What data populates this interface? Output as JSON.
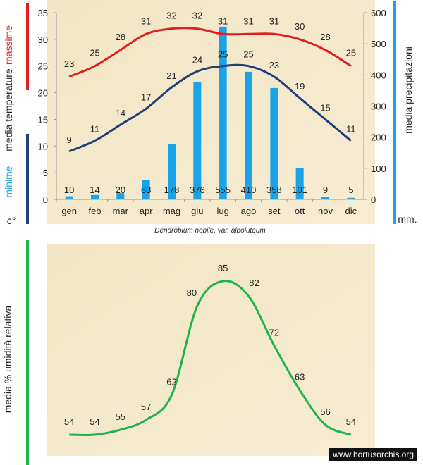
{
  "chart_data": [
    {
      "type": "bar+line",
      "categories": [
        "gen",
        "feb",
        "mar",
        "apr",
        "mag",
        "giu",
        "lug",
        "ago",
        "set",
        "ott",
        "nov",
        "dic"
      ],
      "series": [
        {
          "name": "massime",
          "values": [
            23,
            25,
            28,
            31,
            32,
            32,
            31,
            31,
            31,
            30,
            28,
            25
          ],
          "axis": "left",
          "color": "#e02020"
        },
        {
          "name": "minime",
          "values": [
            9,
            11,
            14,
            17,
            21,
            24,
            25,
            25,
            23,
            19,
            15,
            11
          ],
          "axis": "left",
          "color": "#1f3f7a"
        },
        {
          "name": "media precipitazioni",
          "values": [
            10,
            14,
            20,
            63,
            178,
            376,
            555,
            410,
            358,
            101,
            9,
            5
          ],
          "axis": "right",
          "color": "#1aa3e8"
        }
      ],
      "ylim_left": [
        0,
        35
      ],
      "yticks_left": [
        0,
        5,
        10,
        15,
        20,
        25,
        30,
        35
      ],
      "ylim_right": [
        0,
        600
      ],
      "yticks_right": [
        0,
        100,
        200,
        300,
        400,
        500,
        600
      ],
      "ylabel_left": {
        "top": "massime",
        "middle": "media  temperature",
        "bottom": "minime",
        "unit": "c°"
      },
      "ylabel_right": "media  precipitazioni",
      "right_unit": "mm.",
      "caption": "Dendrobium  nobile, var. alboluteum"
    },
    {
      "type": "line",
      "values": [
        54,
        54,
        55,
        57,
        62,
        80,
        85,
        82,
        72,
        63,
        56,
        54
      ],
      "ylabel": "media %  umidità relativa",
      "color": "#22b24c"
    }
  ],
  "watermark": "www.hortusorchis.org"
}
